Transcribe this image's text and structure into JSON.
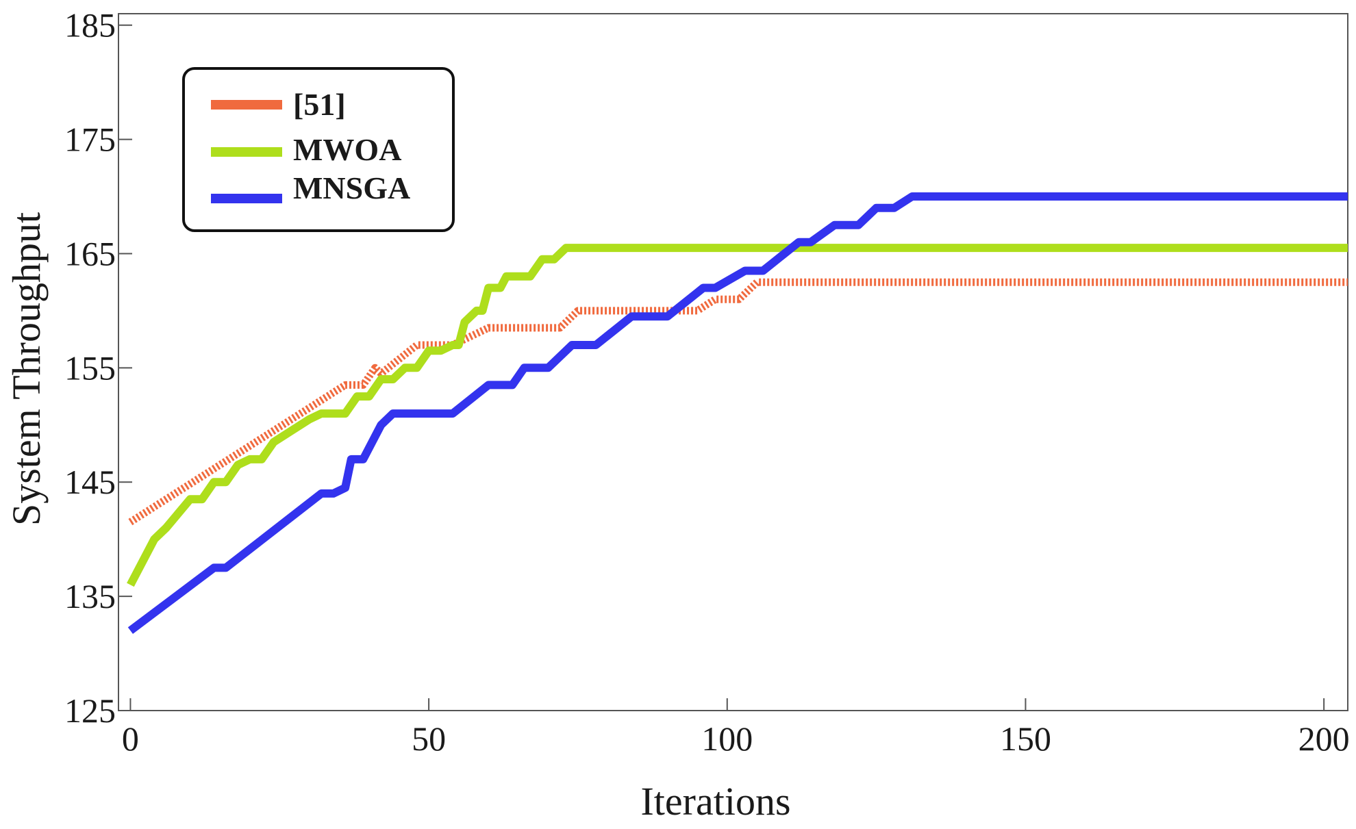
{
  "chart_data": {
    "type": "line",
    "title": "",
    "xlabel": "Iterations",
    "ylabel": "System Throughput",
    "xlim": [
      -2,
      204
    ],
    "ylim": [
      125,
      186
    ],
    "xticks": [
      0,
      50,
      100,
      150,
      200
    ],
    "yticks": [
      125,
      135,
      145,
      155,
      165,
      175,
      185
    ],
    "grid": false,
    "legend_position": "top-left",
    "series": [
      {
        "name": "[51]",
        "color": "#f06a3e",
        "style": "dotted",
        "points": [
          [
            0,
            141.5
          ],
          [
            36,
            153.5
          ],
          [
            39,
            153.5
          ],
          [
            41,
            155
          ],
          [
            42,
            154.5
          ],
          [
            48,
            157
          ],
          [
            54,
            157
          ],
          [
            60,
            158.5
          ],
          [
            72,
            158.5
          ],
          [
            75,
            160
          ],
          [
            95,
            160
          ],
          [
            98,
            161
          ],
          [
            102,
            161
          ],
          [
            105,
            162.5
          ],
          [
            204,
            162.5
          ]
        ]
      },
      {
        "name": "MWOA",
        "color": "#aede1c",
        "style": "solid",
        "points": [
          [
            0,
            136
          ],
          [
            4,
            140
          ],
          [
            6,
            141
          ],
          [
            10,
            143.5
          ],
          [
            12,
            143.5
          ],
          [
            14,
            145
          ],
          [
            16,
            145
          ],
          [
            18,
            146.5
          ],
          [
            20,
            147
          ],
          [
            22,
            147
          ],
          [
            24,
            148.5
          ],
          [
            30,
            150.5
          ],
          [
            32,
            151
          ],
          [
            36,
            151
          ],
          [
            38,
            152.5
          ],
          [
            40,
            152.5
          ],
          [
            42,
            154
          ],
          [
            44,
            154
          ],
          [
            46,
            155
          ],
          [
            48,
            155
          ],
          [
            50,
            156.5
          ],
          [
            52,
            156.5
          ],
          [
            54,
            157
          ],
          [
            55,
            157
          ],
          [
            56,
            159
          ],
          [
            58,
            160
          ],
          [
            59,
            160
          ],
          [
            60,
            162
          ],
          [
            62,
            162
          ],
          [
            63,
            163
          ],
          [
            67,
            163
          ],
          [
            69,
            164.5
          ],
          [
            71,
            164.5
          ],
          [
            73,
            165.5
          ],
          [
            204,
            165.5
          ]
        ]
      },
      {
        "name": "MNSGA",
        "color": "#3333ee",
        "style": "solid",
        "points": [
          [
            0,
            132
          ],
          [
            14,
            137.5
          ],
          [
            16,
            137.5
          ],
          [
            32,
            144
          ],
          [
            34,
            144
          ],
          [
            36,
            144.5
          ],
          [
            37,
            147
          ],
          [
            39,
            147
          ],
          [
            42,
            150
          ],
          [
            44,
            151
          ],
          [
            54,
            151
          ],
          [
            60,
            153.5
          ],
          [
            64,
            153.5
          ],
          [
            66,
            155
          ],
          [
            70,
            155
          ],
          [
            74,
            157
          ],
          [
            78,
            157
          ],
          [
            84,
            159.5
          ],
          [
            90,
            159.5
          ],
          [
            96,
            162
          ],
          [
            98,
            162
          ],
          [
            103,
            163.5
          ],
          [
            106,
            163.5
          ],
          [
            112,
            166
          ],
          [
            114,
            166
          ],
          [
            118,
            167.5
          ],
          [
            122,
            167.5
          ],
          [
            125,
            169
          ],
          [
            128,
            169
          ],
          [
            131,
            170
          ],
          [
            204,
            170
          ]
        ]
      }
    ]
  }
}
